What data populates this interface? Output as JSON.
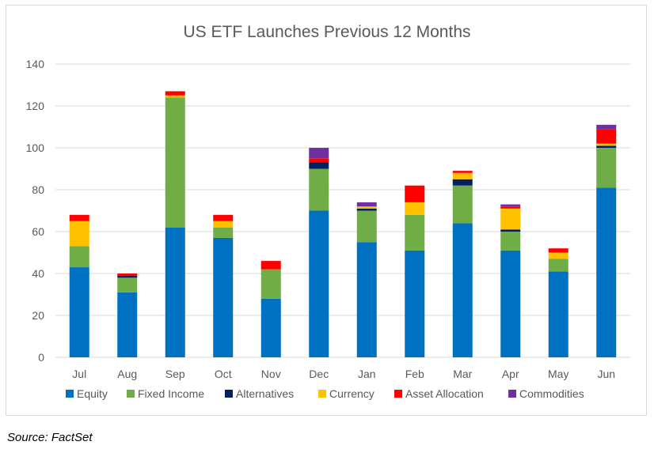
{
  "chart_data": {
    "type": "bar",
    "stacked": true,
    "title": "US ETF Launches Previous 12 Months",
    "xlabel": "",
    "ylabel": "",
    "ylim": [
      0,
      140
    ],
    "yticks": [
      0,
      20,
      40,
      60,
      80,
      100,
      120,
      140
    ],
    "grid": true,
    "legend_position": "bottom",
    "categories": [
      "Jul",
      "Aug",
      "Sep",
      "Oct",
      "Nov",
      "Dec",
      "Jan",
      "Feb",
      "Mar",
      "Apr",
      "May",
      "Jun"
    ],
    "series": [
      {
        "name": "Equity",
        "color": "#0070C0",
        "values": [
          43,
          31,
          62,
          57,
          28,
          70,
          55,
          51,
          64,
          51,
          41,
          81
        ]
      },
      {
        "name": "Fixed Income",
        "color": "#70AD47",
        "values": [
          10,
          7,
          62,
          5,
          14,
          20,
          15,
          17,
          18,
          9,
          6,
          19
        ]
      },
      {
        "name": "Alternatives",
        "color": "#002060",
        "values": [
          0,
          1,
          0,
          0,
          0,
          3,
          1,
          0,
          3,
          1,
          0,
          1
        ]
      },
      {
        "name": "Currency",
        "color": "#FFC000",
        "values": [
          12,
          0,
          1,
          3,
          0,
          0,
          1,
          6,
          3,
          10,
          3,
          1
        ]
      },
      {
        "name": "Asset Allocation",
        "color": "#FF0000",
        "values": [
          3,
          1,
          2,
          3,
          4,
          2,
          0,
          8,
          1,
          1,
          2,
          7
        ]
      },
      {
        "name": "Commodities",
        "color": "#7030A0",
        "values": [
          0,
          0,
          0,
          0,
          0,
          5,
          2,
          0,
          0,
          1,
          0,
          2
        ]
      }
    ]
  },
  "footer": {
    "source": "Source: FactSet"
  }
}
